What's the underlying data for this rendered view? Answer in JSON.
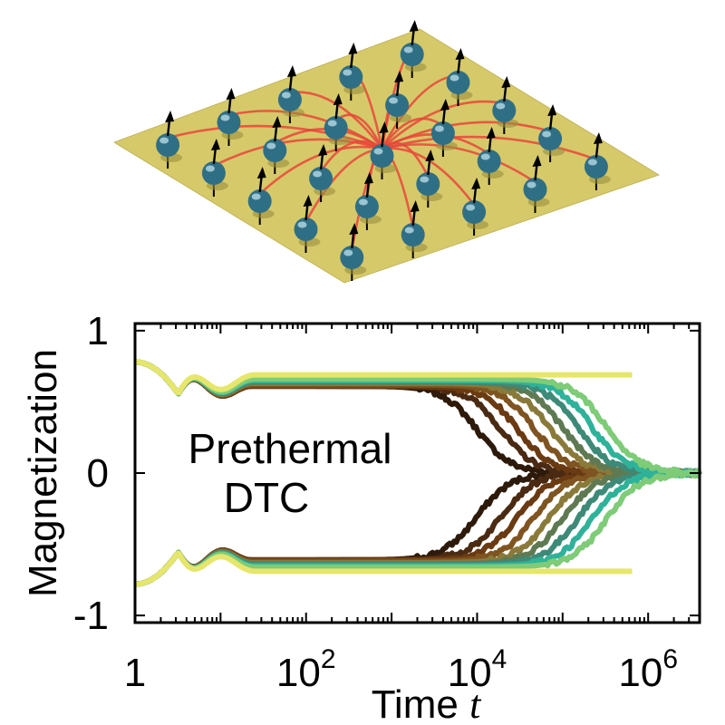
{
  "figure": {
    "illustration": {
      "lattice_color": "#d6c96a",
      "spin_color": "#2f6f86",
      "coupling_color": "#e8463a",
      "arrow_color": "#000000",
      "spins": 25
    },
    "annotation_line1": "Prethermal",
    "annotation_line2": "DTC"
  },
  "chart_data": {
    "type": "line",
    "xlabel_text": "Time ",
    "xlabel_var": "t",
    "ylabel": "Magnetization",
    "x_scale": "log",
    "xlim": [
      1,
      4000000
    ],
    "ylim": [
      -1.05,
      1.05
    ],
    "xticks": [
      {
        "value": 1,
        "label": "1"
      },
      {
        "value": 100,
        "base": "10",
        "exp": "2"
      },
      {
        "value": 10000,
        "base": "10",
        "exp": "4"
      },
      {
        "value": 1000000,
        "base": "10",
        "exp": "6"
      }
    ],
    "yticks": [
      {
        "value": 1,
        "label": "1"
      },
      {
        "value": 0,
        "label": "0"
      },
      {
        "value": -1,
        "label": "-1"
      }
    ],
    "grid": false,
    "series": [
      {
        "color": "#2e1a0a",
        "plateau": 0.61,
        "decay_time": 10000
      },
      {
        "color": "#4a2a12",
        "plateau": 0.61,
        "decay_time": 19000
      },
      {
        "color": "#6a3a12",
        "plateau": 0.61,
        "decay_time": 30000
      },
      {
        "color": "#7f5420",
        "plateau": 0.62,
        "decay_time": 47000
      },
      {
        "color": "#8a7a3a",
        "plateau": 0.63,
        "decay_time": 70000
      },
      {
        "color": "#5f7a52",
        "plateau": 0.64,
        "decay_time": 100000
      },
      {
        "color": "#3d8a78",
        "plateau": 0.64,
        "decay_time": 150000
      },
      {
        "color": "#2fb29a",
        "plateau": 0.65,
        "decay_time": 220000
      },
      {
        "color": "#7ecb78",
        "plateau": 0.66,
        "decay_time": 320000
      },
      {
        "color": "#e6e66c",
        "plateau": 0.69,
        "decay_time": null
      }
    ]
  }
}
